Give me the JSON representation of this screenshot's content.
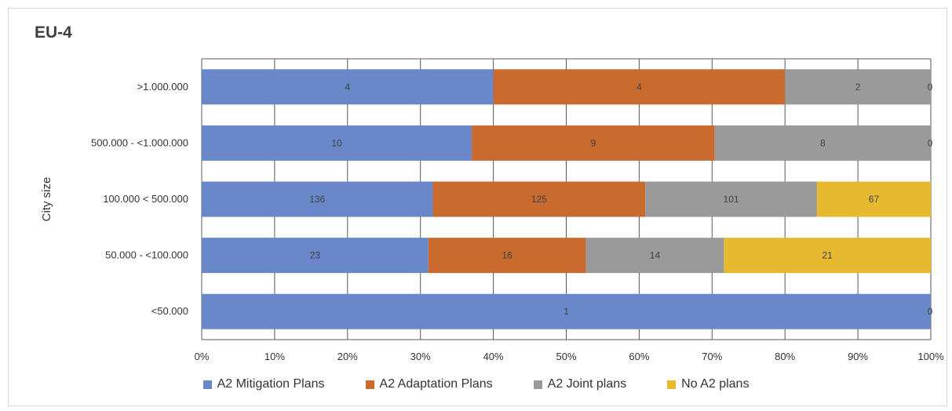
{
  "chart_data": {
    "type": "bar",
    "orientation": "horizontal",
    "stacking": "percent",
    "title": "EU-4",
    "ylabel": "City size",
    "xlabel": "",
    "xlim": [
      0,
      100
    ],
    "x_ticks": [
      "0%",
      "10%",
      "20%",
      "30%",
      "40%",
      "50%",
      "60%",
      "70%",
      "80%",
      "90%",
      "100%"
    ],
    "grid": true,
    "legend_position": "bottom",
    "categories": [
      ">1.000.000",
      "500.000 - <1.000.000",
      "100.000 < 500.000",
      "50.000 - <100.000",
      "<50.000"
    ],
    "series": [
      {
        "name": "A2 Mitigation Plans",
        "color": "#6a87c9",
        "values": [
          4,
          10,
          136,
          23,
          1
        ]
      },
      {
        "name": "A2 Adaptation Plans",
        "color": "#c96b2e",
        "values": [
          4,
          9,
          125,
          16,
          0
        ]
      },
      {
        "name": "A2 Joint plans",
        "color": "#9a9a9a",
        "values": [
          2,
          8,
          101,
          14,
          0
        ]
      },
      {
        "name": "No A2 plans",
        "color": "#e6b92e",
        "values": [
          0,
          0,
          67,
          21,
          0
        ]
      }
    ],
    "value_labels": [
      [
        "4",
        "4",
        "2",
        "0"
      ],
      [
        "10",
        "9",
        "8",
        "0"
      ],
      [
        "136",
        "125",
        "101",
        "67"
      ],
      [
        "23",
        "16",
        "14",
        "21"
      ],
      [
        "1",
        null,
        null,
        "0"
      ]
    ]
  }
}
